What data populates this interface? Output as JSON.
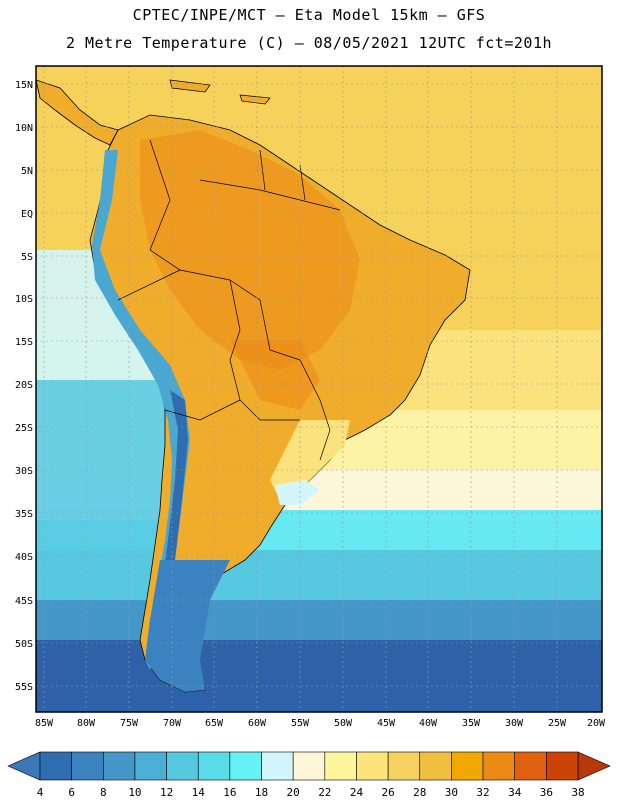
{
  "header": {
    "line1": "CPTEC/INPE/MCT –  Eta Model 15km – GFS",
    "line2": "2 Metre Temperature (C) – 08/05/2021 12UTC fct=201h"
  },
  "axes": {
    "lat_labels": [
      "15N",
      "10N",
      "5N",
      "EQ",
      "5S",
      "10S",
      "15S",
      "20S",
      "25S",
      "30S",
      "35S",
      "40S",
      "45S",
      "50S",
      "55S"
    ],
    "lon_labels": [
      "85W",
      "80W",
      "75W",
      "70W",
      "65W",
      "60W",
      "55W",
      "50W",
      "45W",
      "40W",
      "35W",
      "30W",
      "25W",
      "20W"
    ]
  },
  "colorbar": {
    "labels": [
      "4",
      "6",
      "8",
      "10",
      "12",
      "14",
      "16",
      "18",
      "20",
      "22",
      "24",
      "26",
      "28",
      "30",
      "32",
      "34",
      "36",
      "38"
    ],
    "colors": {
      "below": "#3a78b8",
      "bins": [
        "#2e6db0",
        "#3a83c0",
        "#4497c8",
        "#4bb0d6",
        "#56c8e0",
        "#5adde8",
        "#66f2f5",
        "#d2f6fb",
        "#fdf6d8",
        "#fdf59a",
        "#fbe47a",
        "#f6d260",
        "#f2c040",
        "#f1a800",
        "#ec8a16",
        "#e06210",
        "#cc4306"
      ],
      "above": "#b8380a"
    }
  },
  "legend_colors": {
    "ocean_south": "#2d62a8",
    "ocean_cold": "#4ec3de",
    "ocean_mid": "#66e9f2",
    "ocean_warm": "#fbe27c",
    "ocean_hot": "#f6d25a",
    "land_hot": "#f0ad2c",
    "land_warm": "#f3c653",
    "andes": "#3a8cc6",
    "patagonia": "#4aa7d1"
  }
}
